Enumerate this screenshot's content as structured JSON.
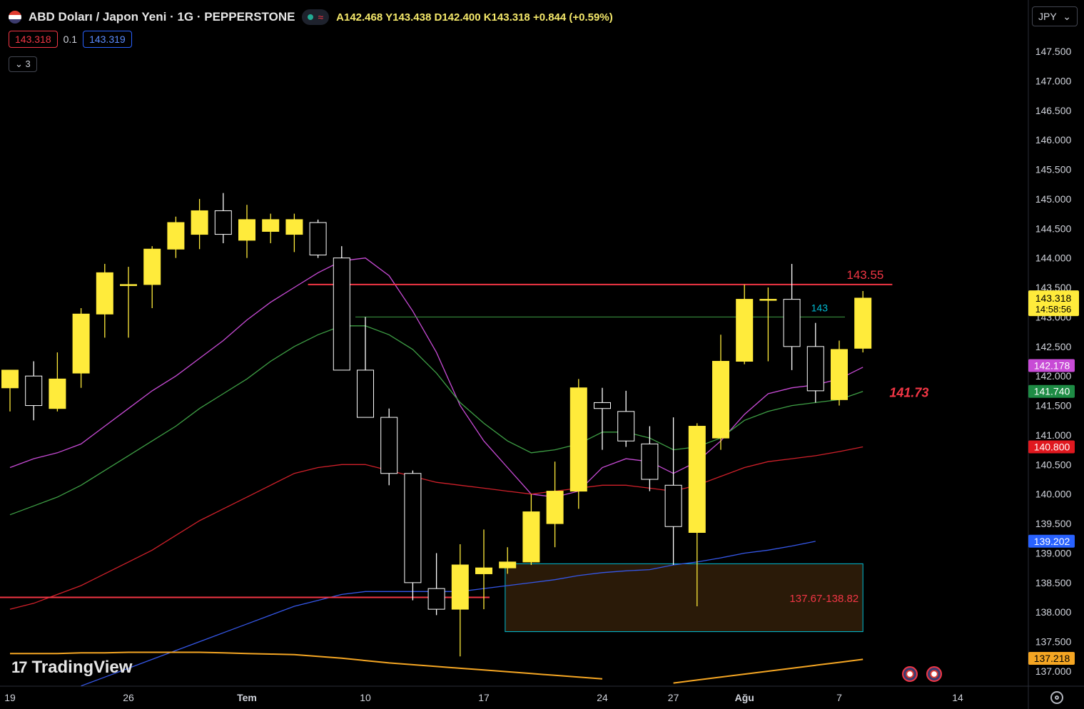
{
  "header": {
    "symbol": "ABD Doları / Japon Yeni · 1G · PEPPERSTONE",
    "status_icon": "market-open-dot",
    "wave_icon": "≈",
    "ohlc": "A142.468  Y143.438  D142.400  K143.318  +0.844 (+0.59%)",
    "bid": "143.318",
    "spread": "0.1",
    "ask": "143.319",
    "indicators_toggle": "3",
    "currency": "JPY",
    "logo": "TradingView",
    "logo_mark": "17"
  },
  "chart_data": {
    "type": "candlestick",
    "y_range": [
      136.8,
      147.8
    ],
    "y_ticks": [
      "147.500",
      "147.000",
      "146.500",
      "146.000",
      "145.500",
      "145.000",
      "144.500",
      "144.000",
      "143.500",
      "143.000",
      "142.500",
      "142.000",
      "141.500",
      "141.000",
      "140.500",
      "140.000",
      "139.500",
      "139.000",
      "138.500",
      "138.000",
      "137.500",
      "137.000"
    ],
    "x_labels": [
      {
        "label": "19",
        "index": 0
      },
      {
        "label": "26",
        "index": 5
      },
      {
        "label": "Tem",
        "index": 10
      },
      {
        "label": "10",
        "index": 15
      },
      {
        "label": "17",
        "index": 20
      },
      {
        "label": "24",
        "index": 25
      },
      {
        "label": "27",
        "index": 28
      },
      {
        "label": "Ağu",
        "index": 31
      },
      {
        "label": "7",
        "index": 35
      },
      {
        "label": "14",
        "index": 40
      }
    ],
    "candles": [
      {
        "o": 141.8,
        "h": 142.1,
        "l": 141.4,
        "c": 142.1
      },
      {
        "o": 142.0,
        "h": 142.25,
        "l": 141.25,
        "c": 141.5
      },
      {
        "o": 141.45,
        "h": 142.4,
        "l": 141.4,
        "c": 141.95
      },
      {
        "o": 142.05,
        "h": 143.15,
        "l": 141.8,
        "c": 143.05
      },
      {
        "o": 143.05,
        "h": 143.9,
        "l": 142.65,
        "c": 143.75
      },
      {
        "o": 143.55,
        "h": 143.85,
        "l": 142.65,
        "c": 143.55
      },
      {
        "o": 143.55,
        "h": 144.2,
        "l": 143.15,
        "c": 144.15
      },
      {
        "o": 144.15,
        "h": 144.7,
        "l": 144.0,
        "c": 144.6
      },
      {
        "o": 144.4,
        "h": 145.0,
        "l": 144.15,
        "c": 144.8
      },
      {
        "o": 144.8,
        "h": 145.1,
        "l": 144.25,
        "c": 144.4
      },
      {
        "o": 144.3,
        "h": 144.9,
        "l": 144.0,
        "c": 144.65
      },
      {
        "o": 144.45,
        "h": 144.75,
        "l": 144.25,
        "c": 144.65
      },
      {
        "o": 144.4,
        "h": 144.75,
        "l": 144.1,
        "c": 144.65
      },
      {
        "o": 144.6,
        "h": 144.65,
        "l": 144.0,
        "c": 144.05
      },
      {
        "o": 144.0,
        "h": 144.2,
        "l": 142.1,
        "c": 142.1
      },
      {
        "o": 142.1,
        "h": 143.0,
        "l": 141.3,
        "c": 141.3
      },
      {
        "o": 141.3,
        "h": 141.45,
        "l": 140.15,
        "c": 140.35
      },
      {
        "o": 140.35,
        "h": 140.4,
        "l": 138.2,
        "c": 138.5
      },
      {
        "o": 138.4,
        "h": 139.0,
        "l": 137.95,
        "c": 138.05
      },
      {
        "o": 138.05,
        "h": 139.15,
        "l": 137.25,
        "c": 138.8
      },
      {
        "o": 138.65,
        "h": 139.4,
        "l": 138.05,
        "c": 138.75
      },
      {
        "o": 138.75,
        "h": 139.1,
        "l": 138.65,
        "c": 138.85
      },
      {
        "o": 138.85,
        "h": 140.0,
        "l": 138.8,
        "c": 139.7
      },
      {
        "o": 139.5,
        "h": 140.55,
        "l": 139.1,
        "c": 140.05
      },
      {
        "o": 140.05,
        "h": 141.95,
        "l": 139.75,
        "c": 141.8
      },
      {
        "o": 141.55,
        "h": 141.8,
        "l": 140.75,
        "c": 141.45
      },
      {
        "o": 141.4,
        "h": 141.75,
        "l": 140.8,
        "c": 140.9
      },
      {
        "o": 140.85,
        "h": 141.15,
        "l": 140.05,
        "c": 140.25
      },
      {
        "o": 140.15,
        "h": 141.3,
        "l": 138.8,
        "c": 139.45
      },
      {
        "o": 139.35,
        "h": 141.2,
        "l": 138.1,
        "c": 141.15
      },
      {
        "o": 140.95,
        "h": 142.7,
        "l": 140.75,
        "c": 142.25
      },
      {
        "o": 142.25,
        "h": 143.55,
        "l": 142.2,
        "c": 143.3
      },
      {
        "o": 143.3,
        "h": 143.5,
        "l": 142.25,
        "c": 143.3
      },
      {
        "o": 143.3,
        "h": 143.9,
        "l": 142.1,
        "c": 142.5
      },
      {
        "o": 142.5,
        "h": 142.9,
        "l": 141.55,
        "c": 141.75
      },
      {
        "o": 141.6,
        "h": 142.6,
        "l": 141.5,
        "c": 142.45
      },
      {
        "o": 142.47,
        "h": 143.44,
        "l": 142.4,
        "c": 143.32
      }
    ],
    "moving_averages": [
      {
        "name": "ma-magenta",
        "color": "#c84bd6",
        "start": 0,
        "values": [
          140.45,
          140.6,
          140.7,
          140.85,
          141.15,
          141.45,
          141.75,
          142.0,
          142.3,
          142.6,
          142.95,
          143.25,
          143.5,
          143.75,
          143.95,
          144.0,
          143.7,
          143.1,
          142.4,
          141.5,
          140.9,
          140.45,
          140.0,
          139.95,
          140.05,
          140.45,
          140.6,
          140.55,
          140.35,
          140.55,
          140.9,
          141.35,
          141.7,
          141.8,
          141.85,
          141.95,
          142.15
        ]
      },
      {
        "name": "ma-green",
        "color": "#3e9f45",
        "start": 0,
        "values": [
          139.65,
          139.8,
          139.95,
          140.15,
          140.4,
          140.65,
          140.9,
          141.15,
          141.45,
          141.7,
          141.95,
          142.25,
          142.5,
          142.7,
          142.85,
          142.85,
          142.7,
          142.45,
          142.05,
          141.55,
          141.2,
          140.9,
          140.7,
          140.75,
          140.85,
          141.05,
          141.05,
          140.95,
          140.75,
          140.8,
          140.95,
          141.25,
          141.4,
          141.5,
          141.55,
          141.6,
          141.74
        ]
      },
      {
        "name": "ma-red",
        "color": "#d0202a",
        "start": 0,
        "values": [
          138.05,
          138.15,
          138.3,
          138.45,
          138.65,
          138.85,
          139.05,
          139.3,
          139.55,
          139.75,
          139.95,
          140.15,
          140.35,
          140.45,
          140.5,
          140.5,
          140.4,
          140.3,
          140.2,
          140.15,
          140.1,
          140.05,
          140.0,
          140.05,
          140.1,
          140.15,
          140.15,
          140.1,
          140.05,
          140.15,
          140.3,
          140.45,
          140.55,
          140.6,
          140.65,
          140.72,
          140.8
        ]
      },
      {
        "name": "ma-blue",
        "color": "#3557e8",
        "start": 3,
        "values": [
          136.75,
          136.9,
          137.05,
          137.2,
          137.35,
          137.5,
          137.65,
          137.8,
          137.95,
          138.1,
          138.2,
          138.3,
          138.35,
          138.35,
          138.35,
          138.35,
          138.35,
          138.4,
          138.45,
          138.5,
          138.55,
          138.62,
          138.67,
          138.7,
          138.72,
          138.8,
          138.85,
          138.92,
          139.0,
          139.05,
          139.12,
          139.2
        ]
      },
      {
        "name": "ma-orange",
        "color": "#f5a623",
        "start": 0,
        "values": [
          137.3,
          137.3,
          137.3,
          137.31,
          137.31,
          137.32,
          137.32,
          137.32,
          137.32,
          137.31,
          137.3,
          137.29,
          137.28,
          137.25,
          137.22,
          137.18,
          137.14,
          137.11,
          137.08,
          137.05,
          137.02,
          136.99,
          136.96,
          136.93,
          136.9,
          136.87
        ]
      },
      {
        "name": "ma-orange-rising",
        "color": "#f5a623",
        "start": 28,
        "values": [
          136.8,
          136.85,
          136.9,
          136.95,
          137.0,
          137.05,
          137.1,
          137.15,
          137.2
        ]
      }
    ],
    "lines": [
      {
        "type": "hline",
        "name": "resistance-line",
        "price": 143.55,
        "color": "#f23645",
        "start": 13,
        "end": 37,
        "label": "143.55",
        "label_color": "#f23645"
      },
      {
        "type": "hline",
        "name": "level-143-line",
        "price": 143.0,
        "color": "#3e9f45",
        "start": 15,
        "end": 35,
        "label": "143",
        "label_color": "#00bcd4"
      },
      {
        "type": "hline",
        "name": "support-line",
        "price": 138.25,
        "color": "#f23645",
        "start": 0,
        "end": 20,
        "label": "",
        "label_color": "#f23645"
      }
    ],
    "zones": [
      {
        "name": "demand-zone",
        "from": 137.67,
        "to": 138.82,
        "start": 20.9,
        "end": 36,
        "label": "137.67-138.82",
        "border": "#00bcd4",
        "fill": "#2a1a08",
        "label_color": "#f23645"
      }
    ],
    "annotations": [
      {
        "name": "ema-label",
        "text": "141.73",
        "price": 141.73,
        "index": 37,
        "color": "#f23645"
      }
    ],
    "price_badges": [
      {
        "name": "last-price-badge",
        "value": "143.318",
        "sub": "14:58:56",
        "price": 143.318,
        "bg": "#ffeb3b",
        "fg": "#000"
      },
      {
        "name": "ma-magenta-badge",
        "value": "142.178",
        "price": 142.178,
        "bg": "#c84bd6",
        "fg": "#fff"
      },
      {
        "name": "ma-green-badge",
        "value": "141.740",
        "price": 141.74,
        "bg": "#1e8c45",
        "fg": "#fff"
      },
      {
        "name": "ma-red-badge",
        "value": "140.800",
        "price": 140.8,
        "bg": "#e0181f",
        "fg": "#fff"
      },
      {
        "name": "ma-blue-badge",
        "value": "139.202",
        "price": 139.202,
        "bg": "#2962ff",
        "fg": "#fff"
      },
      {
        "name": "ma-orange-badge",
        "value": "137.218",
        "price": 137.218,
        "bg": "#f5a623",
        "fg": "#000"
      }
    ]
  }
}
